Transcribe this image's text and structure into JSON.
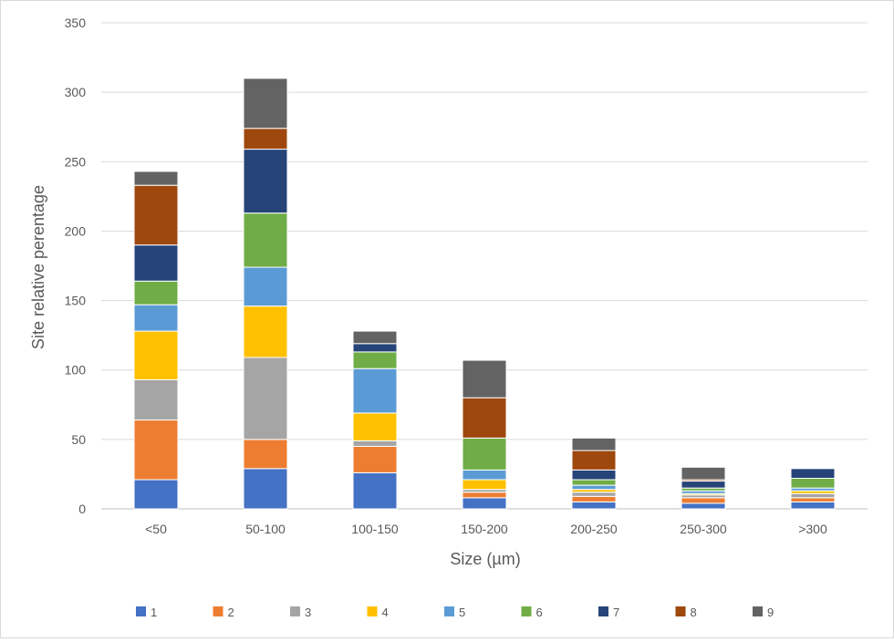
{
  "chart_data": {
    "type": "bar",
    "stacked": true,
    "categories": [
      "<50",
      "50-100",
      "100-150",
      "150-200",
      "200-250",
      "250-300",
      ">300"
    ],
    "series": [
      {
        "name": "1",
        "color": "#4472C4",
        "values": [
          21,
          29,
          26,
          8,
          5,
          4,
          5
        ]
      },
      {
        "name": "2",
        "color": "#ED7D31",
        "values": [
          43,
          21,
          19,
          4,
          4,
          4,
          3
        ]
      },
      {
        "name": "3",
        "color": "#A5A5A5",
        "values": [
          29,
          59,
          4,
          2,
          3,
          2,
          3
        ]
      },
      {
        "name": "4",
        "color": "#FFC000",
        "values": [
          35,
          37,
          20,
          7,
          2,
          1,
          2
        ]
      },
      {
        "name": "5",
        "color": "#5B9BD5",
        "values": [
          19,
          28,
          32,
          7,
          3,
          2,
          2
        ]
      },
      {
        "name": "6",
        "color": "#70AD47",
        "values": [
          17,
          39,
          12,
          23,
          4,
          2,
          7
        ]
      },
      {
        "name": "7",
        "color": "#264478",
        "values": [
          26,
          46,
          6,
          0,
          7,
          5,
          7
        ]
      },
      {
        "name": "8",
        "color": "#9E480E",
        "values": [
          43,
          15,
          0,
          29,
          14,
          1,
          0
        ]
      },
      {
        "name": "9",
        "color": "#636363",
        "values": [
          10,
          36,
          9,
          27,
          9,
          9,
          0
        ]
      }
    ],
    "title": "",
    "xlabel": "Size (µm)",
    "ylabel": "Site relative perentage",
    "ylim": [
      0,
      350
    ],
    "yticks": [
      "0",
      "50",
      "100",
      "150",
      "200",
      "250",
      "300",
      "350"
    ],
    "grid": true,
    "legend_position": "bottom"
  }
}
